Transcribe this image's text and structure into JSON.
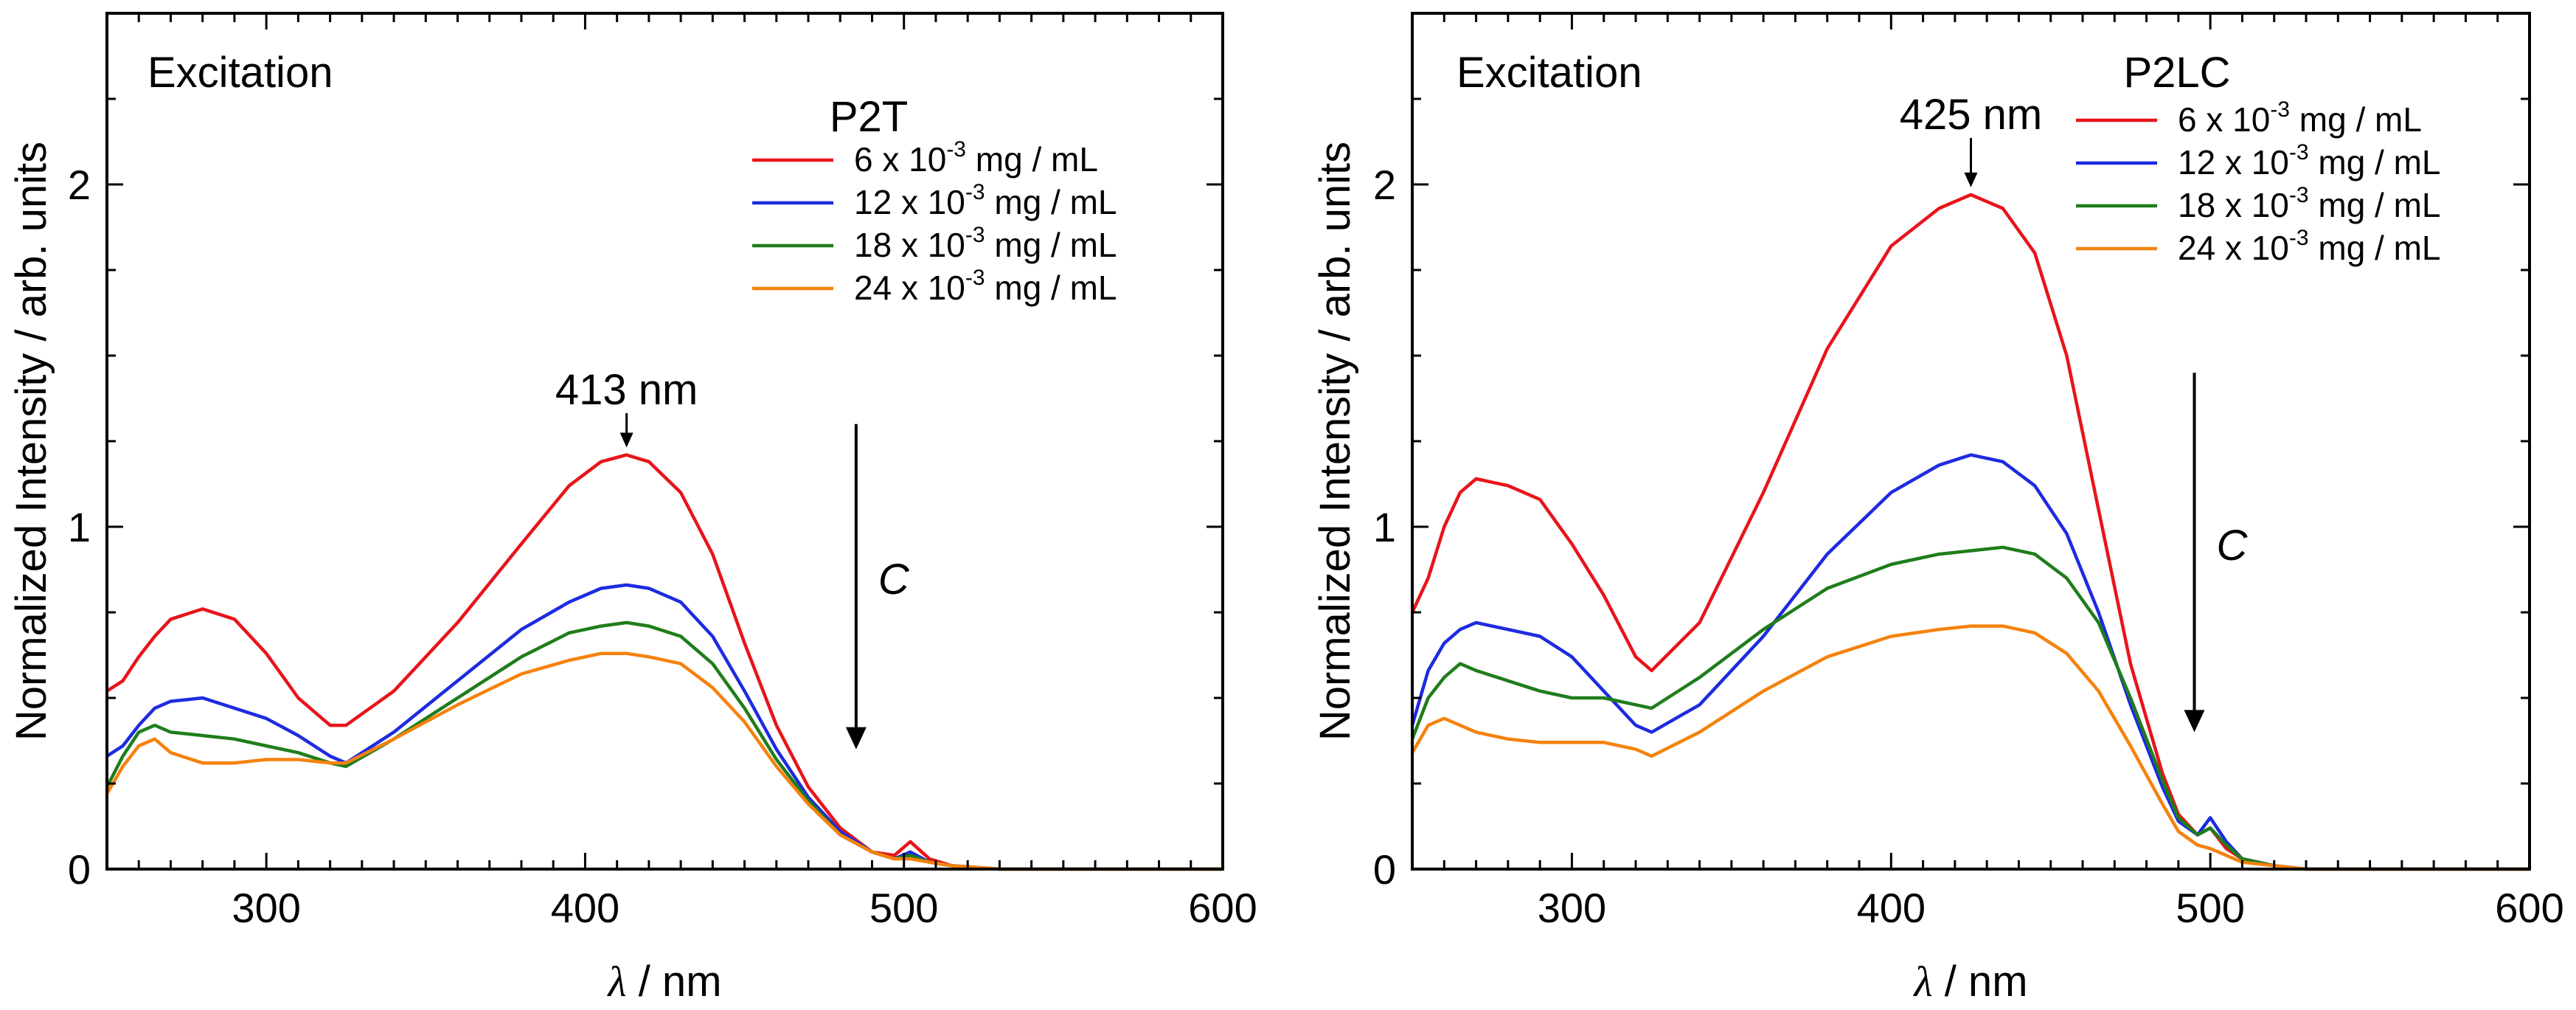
{
  "chart_data": [
    {
      "type": "line",
      "title": "P2T",
      "mode_label": "Excitation",
      "xlabel_symbol": "λ",
      "xlabel_unit": " / nm",
      "ylabel": "Normalized Intensity / arb. units",
      "xlim": [
        250,
        600
      ],
      "ylim": [
        0,
        2.5
      ],
      "x_ticks": [
        300,
        400,
        500,
        600
      ],
      "y_ticks": [
        0,
        1,
        2
      ],
      "peak_label": "413 nm",
      "peak_x": 413,
      "peak_y": 1.21,
      "arrow_label": "C",
      "arrow_x": 485,
      "arrow_from": 1.3,
      "arrow_to": 0.35,
      "legend_position": "top-right",
      "series": [
        {
          "name": "6 x 10-3 mg / mL",
          "coef": "6",
          "color": "#e8141b",
          "x": [
            250,
            255,
            260,
            265,
            270,
            280,
            290,
            300,
            310,
            320,
            325,
            340,
            360,
            380,
            395,
            405,
            413,
            420,
            430,
            440,
            450,
            460,
            470,
            480,
            490,
            497,
            502,
            508,
            515,
            530,
            600
          ],
          "y": [
            0.52,
            0.55,
            0.62,
            0.68,
            0.73,
            0.76,
            0.73,
            0.63,
            0.5,
            0.42,
            0.42,
            0.52,
            0.72,
            0.95,
            1.12,
            1.19,
            1.21,
            1.19,
            1.1,
            0.92,
            0.66,
            0.42,
            0.24,
            0.12,
            0.05,
            0.04,
            0.08,
            0.03,
            0.01,
            0.0,
            0.0
          ]
        },
        {
          "name": "12 x 10-3 mg / mL",
          "coef": "12",
          "color": "#1d2be0",
          "x": [
            250,
            255,
            260,
            265,
            270,
            280,
            290,
            300,
            310,
            320,
            325,
            340,
            360,
            380,
            395,
            405,
            413,
            420,
            430,
            440,
            450,
            460,
            470,
            480,
            490,
            497,
            502,
            508,
            515,
            530,
            600
          ],
          "y": [
            0.33,
            0.36,
            0.42,
            0.47,
            0.49,
            0.5,
            0.47,
            0.44,
            0.39,
            0.33,
            0.31,
            0.4,
            0.55,
            0.7,
            0.78,
            0.82,
            0.83,
            0.82,
            0.78,
            0.68,
            0.52,
            0.35,
            0.21,
            0.11,
            0.05,
            0.03,
            0.05,
            0.02,
            0.01,
            0.0,
            0.0
          ]
        },
        {
          "name": "18 x 10-3 mg / mL",
          "coef": "18",
          "color": "#1f7d1b",
          "x": [
            250,
            255,
            260,
            265,
            270,
            280,
            290,
            300,
            310,
            320,
            325,
            340,
            360,
            380,
            395,
            405,
            413,
            420,
            430,
            440,
            450,
            460,
            470,
            480,
            490,
            497,
            502,
            508,
            515,
            530,
            600
          ],
          "y": [
            0.24,
            0.33,
            0.4,
            0.42,
            0.4,
            0.39,
            0.38,
            0.36,
            0.34,
            0.31,
            0.3,
            0.38,
            0.5,
            0.62,
            0.69,
            0.71,
            0.72,
            0.71,
            0.68,
            0.6,
            0.47,
            0.32,
            0.2,
            0.1,
            0.05,
            0.03,
            0.04,
            0.02,
            0.01,
            0.0,
            0.0
          ]
        },
        {
          "name": "24 x 10-3 mg / mL",
          "coef": "24",
          "color": "#f5820e",
          "x": [
            250,
            255,
            260,
            265,
            270,
            280,
            290,
            300,
            310,
            320,
            325,
            340,
            360,
            380,
            395,
            405,
            413,
            420,
            430,
            440,
            450,
            460,
            470,
            480,
            490,
            497,
            502,
            508,
            515,
            530,
            600
          ],
          "y": [
            0.22,
            0.3,
            0.36,
            0.38,
            0.34,
            0.31,
            0.31,
            0.32,
            0.32,
            0.31,
            0.31,
            0.38,
            0.48,
            0.57,
            0.61,
            0.63,
            0.63,
            0.62,
            0.6,
            0.53,
            0.43,
            0.3,
            0.19,
            0.1,
            0.05,
            0.03,
            0.03,
            0.02,
            0.01,
            0.0,
            0.0
          ]
        }
      ]
    },
    {
      "type": "line",
      "title": "P2LC",
      "mode_label": "Excitation",
      "xlabel_symbol": "λ",
      "xlabel_unit": " / nm",
      "ylabel": "Normalized Intensity / arb. units",
      "xlim": [
        250,
        600
      ],
      "ylim": [
        0,
        2.5
      ],
      "x_ticks": [
        300,
        400,
        500,
        600
      ],
      "y_ticks": [
        0,
        1,
        2
      ],
      "peak_label": "425 nm",
      "peak_x": 425,
      "peak_y": 1.97,
      "arrow_label": "C",
      "arrow_x": 495,
      "arrow_from": 1.45,
      "arrow_to": 0.4,
      "legend_position": "top-right",
      "series": [
        {
          "name": "6 x 10-3 mg / mL",
          "coef": "6",
          "color": "#e8141b",
          "x": [
            250,
            255,
            260,
            265,
            270,
            280,
            290,
            300,
            310,
            320,
            325,
            340,
            360,
            380,
            400,
            415,
            425,
            435,
            445,
            455,
            465,
            475,
            485,
            490,
            496,
            500,
            505,
            510,
            520,
            530,
            600
          ],
          "y": [
            0.75,
            0.85,
            1.0,
            1.1,
            1.14,
            1.12,
            1.08,
            0.95,
            0.8,
            0.62,
            0.58,
            0.72,
            1.1,
            1.52,
            1.82,
            1.93,
            1.97,
            1.93,
            1.8,
            1.5,
            1.05,
            0.6,
            0.28,
            0.16,
            0.1,
            0.12,
            0.06,
            0.03,
            0.01,
            0.0,
            0.0
          ]
        },
        {
          "name": "12 x 10-3 mg / mL",
          "coef": "12",
          "color": "#1d2be0",
          "x": [
            250,
            255,
            260,
            265,
            270,
            280,
            290,
            300,
            310,
            320,
            325,
            340,
            360,
            380,
            400,
            415,
            425,
            435,
            445,
            455,
            465,
            475,
            485,
            490,
            496,
            500,
            505,
            510,
            520,
            530,
            600
          ],
          "y": [
            0.42,
            0.58,
            0.66,
            0.7,
            0.72,
            0.7,
            0.68,
            0.62,
            0.52,
            0.42,
            0.4,
            0.48,
            0.68,
            0.92,
            1.1,
            1.18,
            1.21,
            1.19,
            1.12,
            0.98,
            0.75,
            0.48,
            0.24,
            0.14,
            0.1,
            0.15,
            0.08,
            0.03,
            0.01,
            0.0,
            0.0
          ]
        },
        {
          "name": "18 x 10-3 mg / mL",
          "coef": "18",
          "color": "#1f7d1b",
          "x": [
            250,
            255,
            260,
            265,
            270,
            280,
            290,
            300,
            310,
            320,
            325,
            340,
            360,
            380,
            400,
            415,
            425,
            435,
            445,
            455,
            465,
            475,
            485,
            490,
            496,
            500,
            505,
            510,
            520,
            530,
            600
          ],
          "y": [
            0.38,
            0.5,
            0.56,
            0.6,
            0.58,
            0.55,
            0.52,
            0.5,
            0.5,
            0.48,
            0.47,
            0.56,
            0.7,
            0.82,
            0.89,
            0.92,
            0.93,
            0.94,
            0.92,
            0.85,
            0.72,
            0.5,
            0.26,
            0.15,
            0.1,
            0.12,
            0.07,
            0.03,
            0.01,
            0.0,
            0.0
          ]
        },
        {
          "name": "24 x 10-3 mg / mL",
          "coef": "24",
          "color": "#f5820e",
          "x": [
            250,
            255,
            260,
            265,
            270,
            280,
            290,
            300,
            310,
            320,
            325,
            340,
            360,
            380,
            400,
            415,
            425,
            435,
            445,
            455,
            465,
            475,
            485,
            490,
            496,
            500,
            505,
            510,
            520,
            530,
            600
          ],
          "y": [
            0.34,
            0.42,
            0.44,
            0.42,
            0.4,
            0.38,
            0.37,
            0.37,
            0.37,
            0.35,
            0.33,
            0.4,
            0.52,
            0.62,
            0.68,
            0.7,
            0.71,
            0.71,
            0.69,
            0.63,
            0.52,
            0.36,
            0.19,
            0.11,
            0.07,
            0.06,
            0.04,
            0.02,
            0.01,
            0.0,
            0.0
          ]
        }
      ]
    }
  ]
}
